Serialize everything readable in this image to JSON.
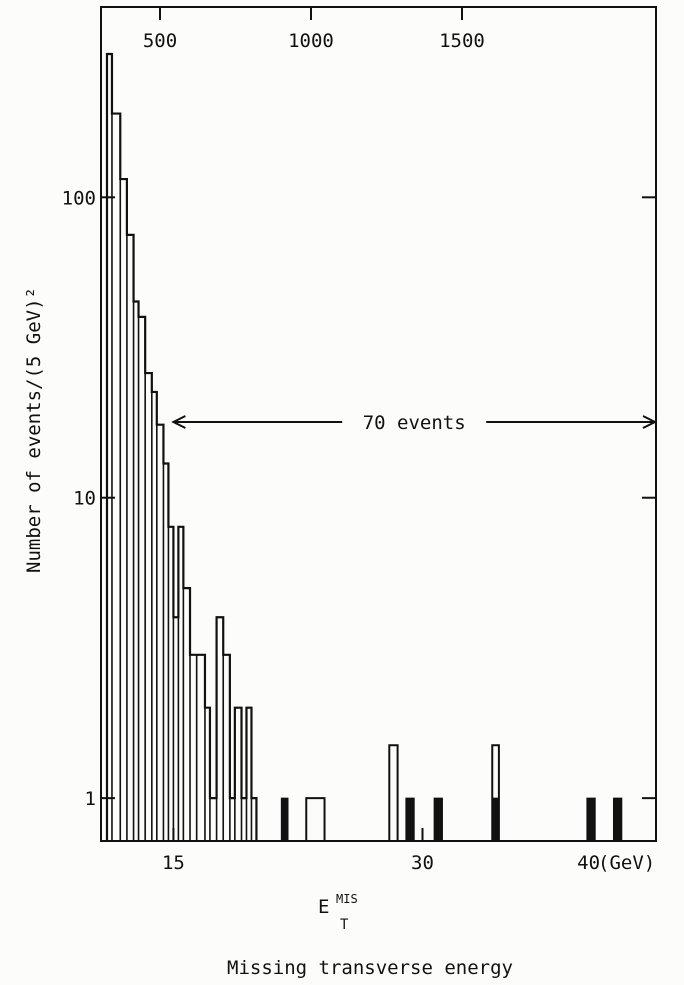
{
  "chart_data": {
    "type": "bar",
    "yscale": "log",
    "ylabel": "Number of events/(5 GeV)²",
    "xlabel": "E",
    "xlabel_super": "MIS",
    "xlabel_sub": "T",
    "subtitle": "Missing transverse energy",
    "x_unit": "(GeV)",
    "x_ticks": [
      {
        "value": 15,
        "label": "15"
      },
      {
        "value": 30,
        "label": "30"
      },
      {
        "value": 40,
        "label": "40"
      }
    ],
    "top_ticks": [
      {
        "value": 500,
        "label": "500"
      },
      {
        "value": 1000,
        "label": "1000"
      },
      {
        "value": 1500,
        "label": "1500"
      }
    ],
    "y_ticks": [
      {
        "value": 1,
        "label": "1"
      },
      {
        "value": 10,
        "label": "10"
      },
      {
        "value": 100,
        "label": "100"
      }
    ],
    "xlim": [
      10.7,
      44
    ],
    "ylim": [
      0.72,
      430
    ],
    "annotation": {
      "text": "70 events",
      "x_from": 15,
      "x_to": 44
    },
    "histogram": {
      "bin_edges": [
        11.0,
        11.3,
        11.8,
        12.2,
        12.6,
        12.9,
        13.3,
        13.7,
        14.0,
        14.4,
        14.7,
        15.0,
        15.3,
        15.6,
        16.0,
        16.4,
        16.9,
        17.2,
        17.6,
        18.0,
        18.4,
        18.7,
        19.1,
        19.4,
        19.7,
        20.0
      ],
      "values": [
        300,
        190,
        115,
        75,
        45,
        40,
        26,
        22.5,
        17.5,
        13,
        8,
        4,
        8,
        5,
        3,
        3,
        2,
        1,
        4,
        3,
        1,
        2,
        1,
        2,
        1
      ]
    },
    "open_bars": [
      {
        "x_left": 23.0,
        "x_right": 24.1,
        "value": 1
      },
      {
        "x_left": 28.0,
        "x_right": 28.5,
        "value": 1.5
      },
      {
        "x_left": 34.2,
        "x_right": 34.6,
        "value": 1.5
      }
    ],
    "solid_bars": [
      {
        "x_left": 21.5,
        "x_right": 21.9,
        "value": 1
      },
      {
        "x_left": 29.0,
        "x_right": 29.5,
        "value": 1
      },
      {
        "x_left": 30.7,
        "x_right": 31.2,
        "value": 1
      },
      {
        "x_left": 34.2,
        "x_right": 34.6,
        "value": 1
      },
      {
        "x_left": 39.9,
        "x_right": 40.4,
        "value": 1
      },
      {
        "x_left": 41.5,
        "x_right": 42.0,
        "value": 1
      }
    ]
  }
}
